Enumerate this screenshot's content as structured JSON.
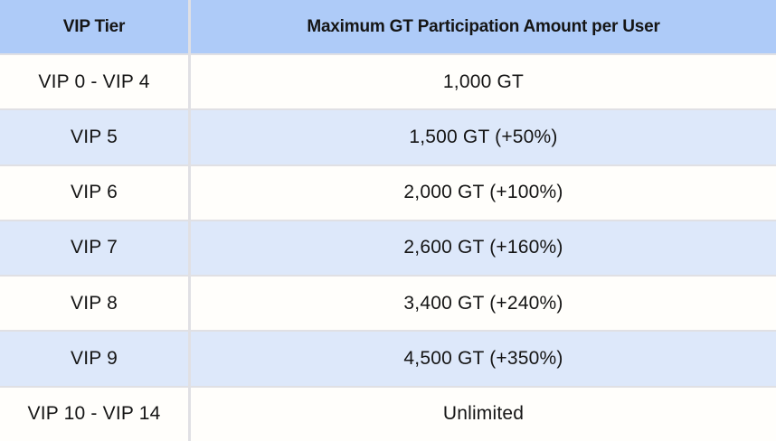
{
  "table": {
    "columns": [
      {
        "label": "VIP Tier"
      },
      {
        "label": "Maximum GT Participation Amount per User"
      }
    ],
    "rows": [
      {
        "tier": "VIP 0 - VIP 4",
        "amount": "1,000 GT"
      },
      {
        "tier": "VIP 5",
        "amount": "1,500 GT (+50%)"
      },
      {
        "tier": "VIP 6",
        "amount": "2,000 GT (+100%)"
      },
      {
        "tier": "VIP 7",
        "amount": "2,600 GT (+160%)"
      },
      {
        "tier": "VIP 8",
        "amount": "3,400 GT (+240%)"
      },
      {
        "tier": "VIP 9",
        "amount": "4,500 GT (+350%)"
      },
      {
        "tier": "VIP 10 - VIP 14",
        "amount": "Unlimited"
      }
    ],
    "colors": {
      "header_bg": "#aecbf8",
      "row_bg": "#fffefb",
      "row_alt_bg": "#dde8fa",
      "border": "#e0e0e4",
      "text": "#151515"
    }
  }
}
